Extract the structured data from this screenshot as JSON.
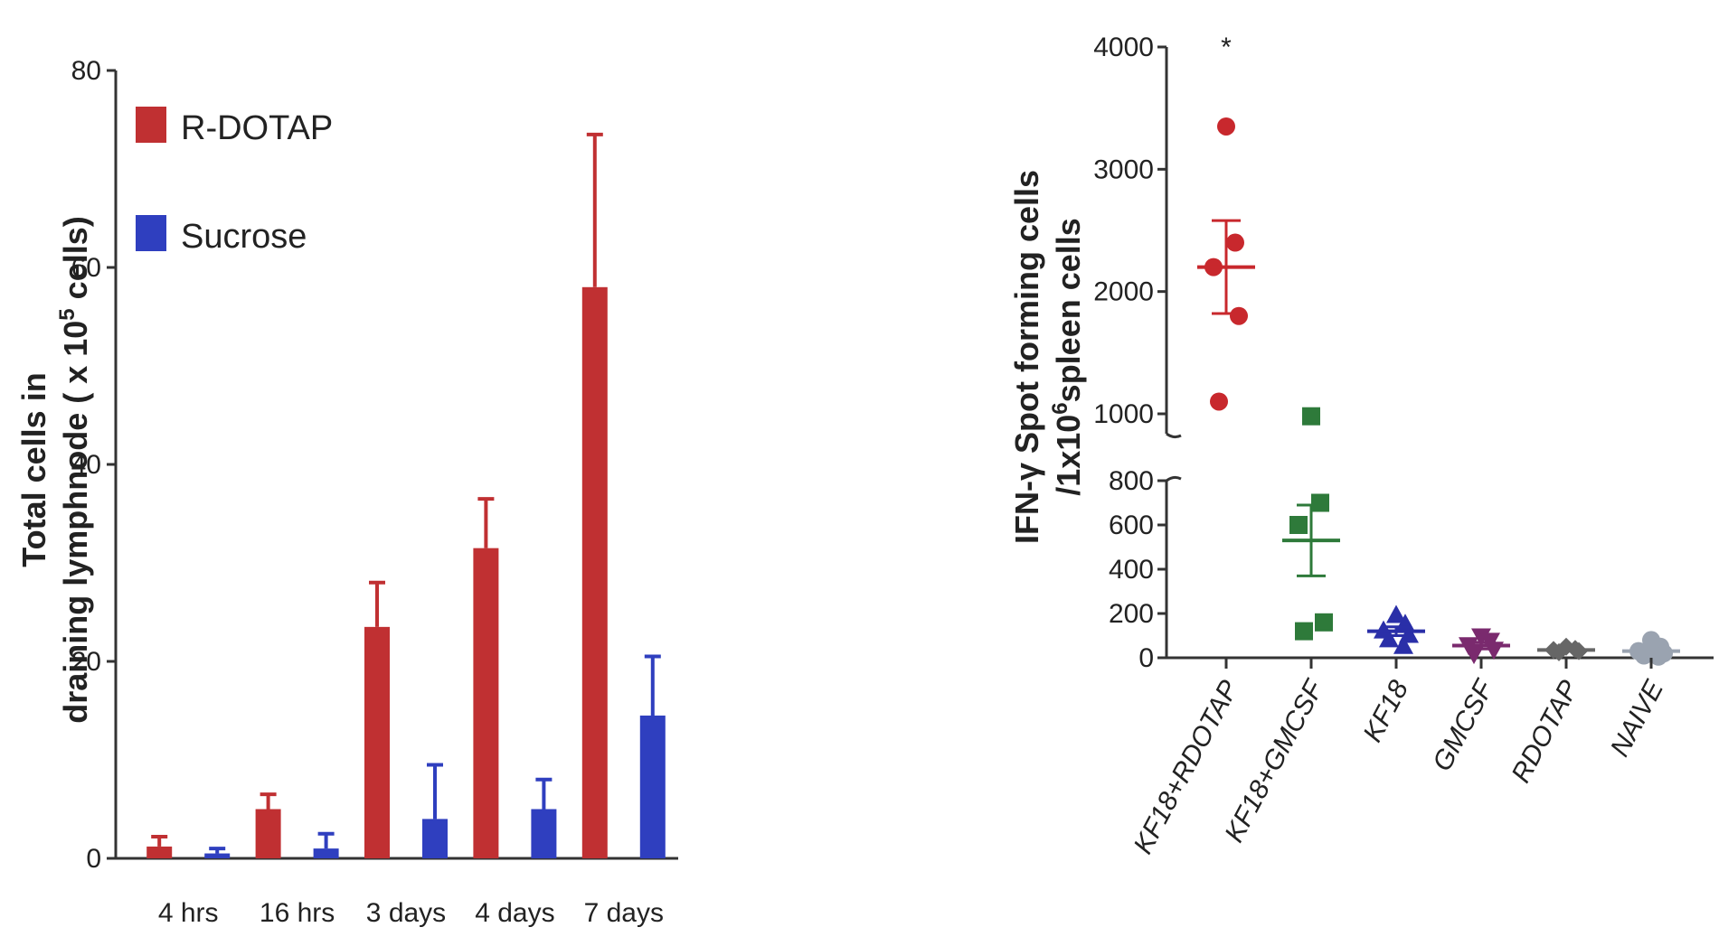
{
  "chart_data": [
    {
      "type": "bar",
      "ylabel_line1": "Total cells in",
      "ylabel_line2": "draining lymphnode ( x 10",
      "ylabel_sup": "5",
      "ylabel_end": " cells)",
      "categories": [
        "4 hrs",
        "16 hrs",
        "3 days",
        "4 days",
        "7 days"
      ],
      "ylim": [
        0,
        80
      ],
      "yticks": [
        0,
        20,
        40,
        60,
        80
      ],
      "legend_position": "top-left",
      "series": [
        {
          "name": "R-DOTAP",
          "color": "#c03032",
          "values": [
            1.2,
            5.0,
            23.5,
            31.5,
            58.0
          ],
          "errors": [
            1.0,
            1.5,
            4.5,
            5.0,
            15.5
          ]
        },
        {
          "name": "Sucrose",
          "color": "#2f3fbf",
          "values": [
            0.5,
            1.0,
            4.0,
            5.0,
            14.5
          ],
          "errors": [
            0.5,
            1.5,
            5.5,
            3.0,
            6.0
          ]
        }
      ]
    },
    {
      "type": "scatter",
      "ylabel_line1": "IFN-γ Spot forming cells",
      "ylabel_line2": "/1x10",
      "ylabel_sup": "6",
      "ylabel_end": "spleen cells",
      "categories": [
        "KF18+RDOTAP",
        "KF18+GMCSF",
        "KF18",
        "GMCSF",
        "RDOTAP",
        "NAIVE"
      ],
      "yticks_lower": [
        0,
        200,
        400,
        600,
        800
      ],
      "yticks_upper": [
        1000,
        2000,
        3000,
        4000
      ],
      "broken_axis": true,
      "significance_marker": "*",
      "groups": [
        {
          "color": "#c8282d",
          "marker": "circle",
          "points": [
            3350,
            2400,
            2200,
            1800,
            1100
          ],
          "mean": 2200,
          "sem": 380
        },
        {
          "color": "#2e7a3a",
          "marker": "square",
          "points": [
            980,
            700,
            600,
            160,
            120
          ],
          "mean": 530,
          "sem": 160
        },
        {
          "color": "#2a2fa8",
          "marker": "triangle",
          "points": [
            190,
            150,
            120,
            100,
            80,
            50
          ],
          "mean": 120,
          "sem": 20
        },
        {
          "color": "#7a2a6e",
          "marker": "triangle-down",
          "points": [
            100,
            80,
            60,
            40,
            20
          ],
          "mean": 55,
          "sem": 15
        },
        {
          "color": "#666666",
          "marker": "diamond",
          "points": [
            50,
            40,
            35,
            30,
            25
          ],
          "mean": 35,
          "sem": 5
        },
        {
          "color": "#9aa3b0",
          "marker": "circle",
          "points": [
            80,
            50,
            30,
            20,
            10,
            5
          ],
          "mean": 30,
          "sem": 8
        }
      ]
    }
  ]
}
